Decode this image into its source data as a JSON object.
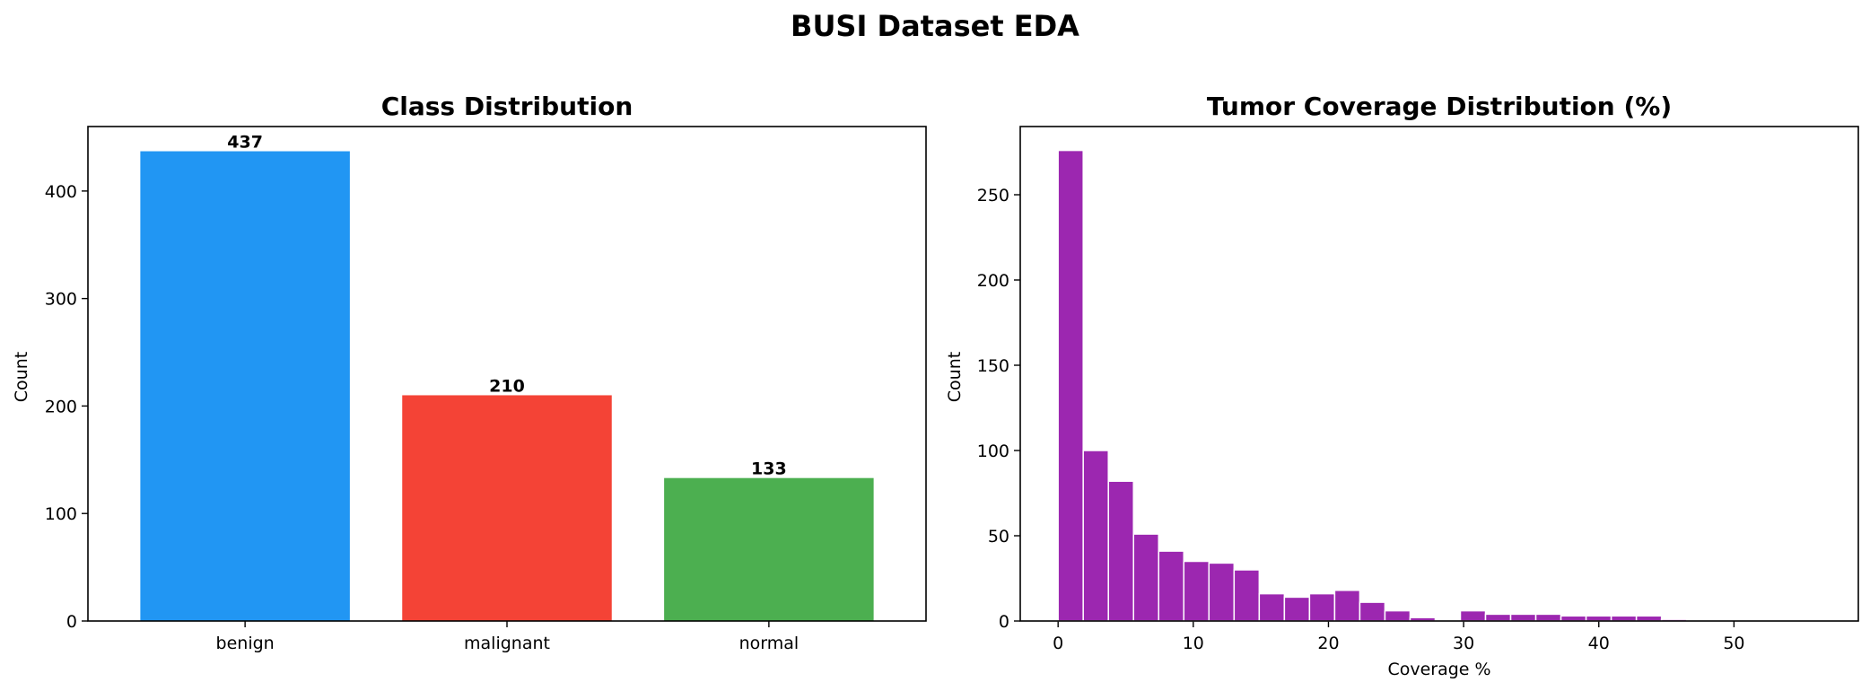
{
  "figure": {
    "title": "BUSI Dataset EDA"
  },
  "colors": {
    "benign": "#2196F3",
    "malignant": "#F44336",
    "normal": "#4CAF50",
    "histogram": "#9C27B0"
  },
  "chart_data": [
    {
      "type": "bar",
      "title": "Class Distribution",
      "xlabel": "",
      "ylabel": "Count",
      "categories": [
        "benign",
        "malignant",
        "normal"
      ],
      "values": [
        437,
        210,
        133
      ],
      "data_labels": [
        "437",
        "210",
        "133"
      ],
      "ylim": [
        0,
        460
      ],
      "yticks": [
        0,
        100,
        200,
        300,
        400
      ],
      "grid": false
    },
    {
      "type": "bar",
      "subtype": "histogram",
      "title": "Tumor Coverage Distribution (%)",
      "xlabel": "Coverage %",
      "ylabel": "Count",
      "bin_start": 0,
      "bin_width": 1.86,
      "bin_counts": [
        276,
        100,
        82,
        51,
        41,
        35,
        34,
        30,
        16,
        14,
        16,
        18,
        11,
        6,
        2,
        0,
        6,
        4,
        4,
        4,
        3,
        3,
        3,
        3,
        1,
        0,
        0,
        0,
        0,
        0
      ],
      "xlim": [
        -2.8,
        59.2
      ],
      "ylim": [
        0,
        290
      ],
      "xticks": [
        0,
        10,
        20,
        30,
        40,
        50
      ],
      "yticks": [
        0,
        50,
        100,
        150,
        200,
        250
      ],
      "grid": false
    }
  ]
}
